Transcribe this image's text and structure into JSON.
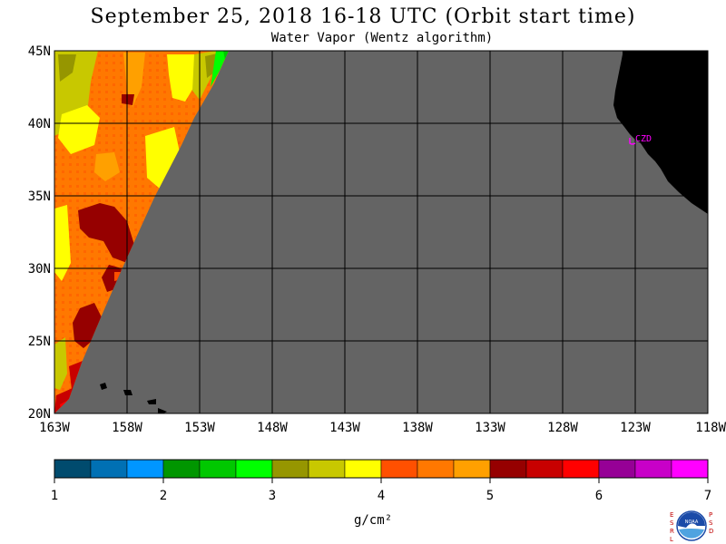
{
  "header": {
    "title": "September 25, 2018  16-18 UTC  (Orbit start time)",
    "subtitle": "Water Vapor (Wentz algorithm)"
  },
  "map": {
    "lat_ticks": [
      "45N",
      "40N",
      "35N",
      "30N",
      "25N",
      "20N"
    ],
    "lon_ticks": [
      "163W",
      "158W",
      "153W",
      "148W",
      "143W",
      "138W",
      "133W",
      "128W",
      "123W",
      "118W"
    ],
    "lat_range": [
      20,
      45
    ],
    "lon_range": [
      -163,
      -118
    ],
    "station_label": "CZD",
    "colors": {
      "no_data": "#646464",
      "land": "#000000",
      "grid": "#000000",
      "station": "#ff00ff"
    }
  },
  "colorbar": {
    "tick_labels": [
      "1",
      "2",
      "3",
      "4",
      "5",
      "6",
      "7"
    ],
    "units": "g/cm²",
    "colors": [
      "#004b6e",
      "#0070b4",
      "#0096ff",
      "#009600",
      "#00c800",
      "#00ff00",
      "#969600",
      "#c8c800",
      "#ffff00",
      "#ff5000",
      "#ff7800",
      "#ffa000",
      "#960000",
      "#c80000",
      "#ff0000",
      "#960096",
      "#c800c8",
      "#ff00ff"
    ]
  },
  "logo": {
    "left_letters": "ESRL",
    "right_letters": "PSD",
    "center_text": "NOAA"
  }
}
